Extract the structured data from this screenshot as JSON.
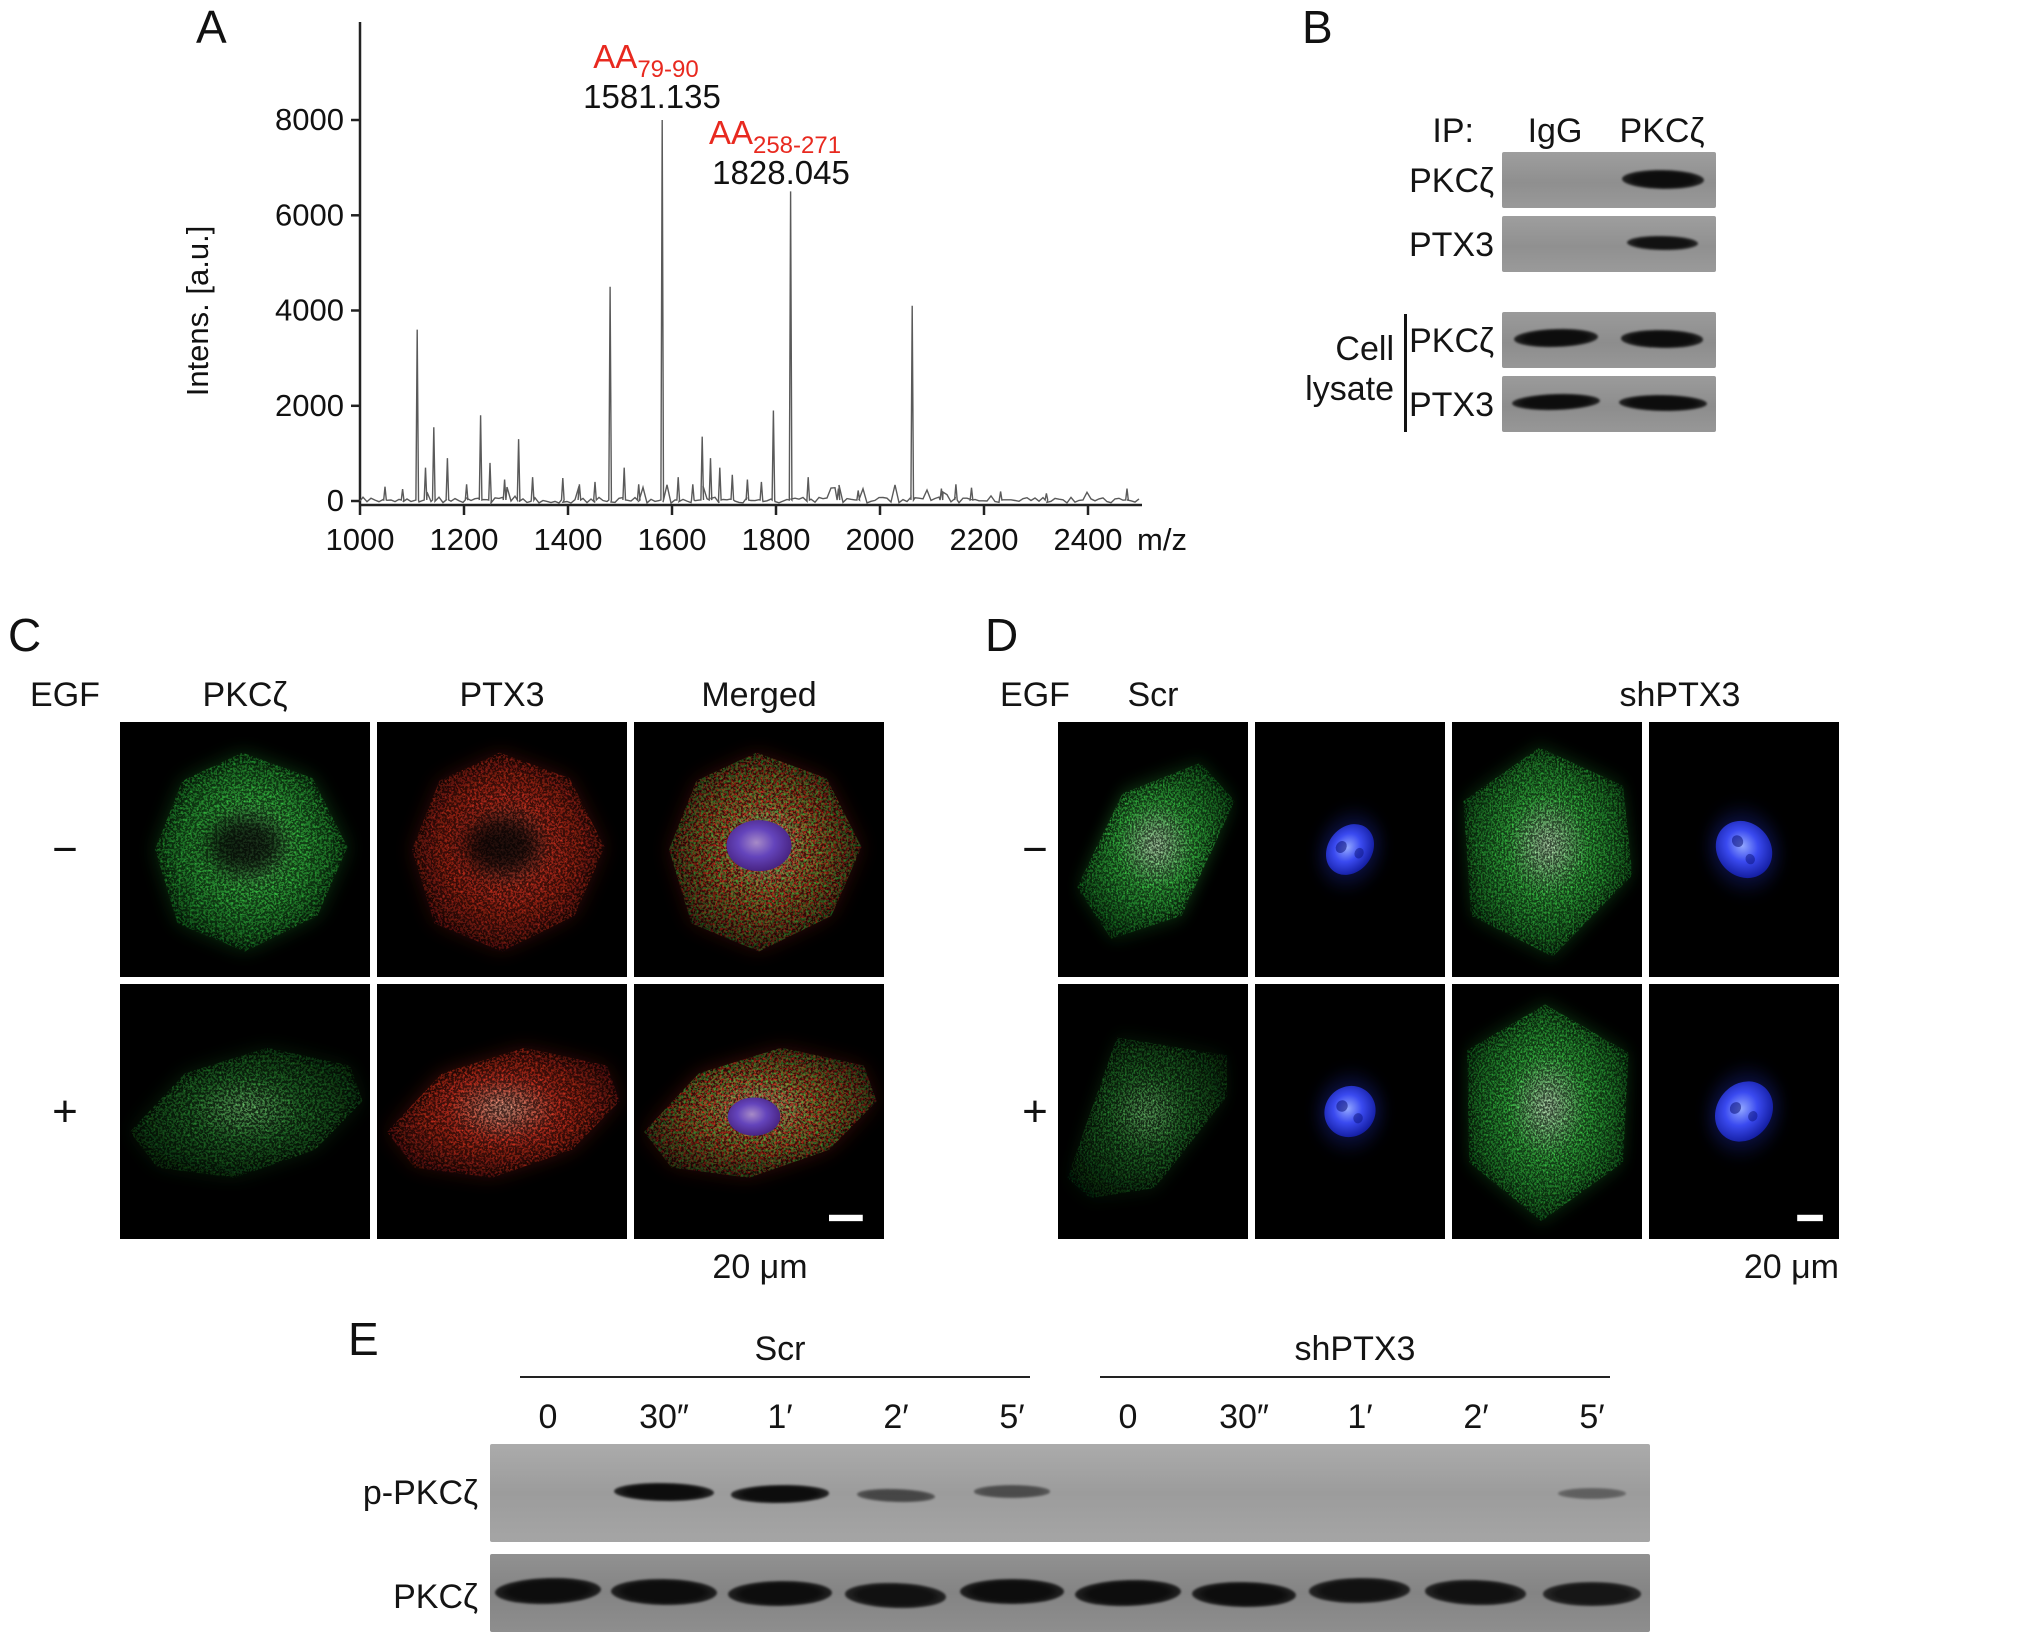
{
  "panelA": {
    "label": "A",
    "ylabel": "Intens. [a.u.]",
    "xlabel": "m/z",
    "annotation_color": "#e8291f",
    "annotations": [
      {
        "prefix": "AA",
        "sub": "79-90",
        "mass": "1581.135"
      },
      {
        "prefix": "AA",
        "sub": "258-271",
        "mass": "1828.045"
      }
    ]
  },
  "chart_data": {
    "type": "line",
    "title": "",
    "xlabel": "m/z",
    "ylabel": "Intens. [a.u.]",
    "xlim": [
      1000,
      2500
    ],
    "ylim": [
      0,
      8600
    ],
    "x_ticks": [
      1000,
      1200,
      1400,
      1600,
      1800,
      2000,
      2200,
      2400
    ],
    "y_ticks": [
      0,
      2000,
      4000,
      6000,
      8000
    ],
    "peaks": [
      [
        1048,
        300
      ],
      [
        1082,
        250
      ],
      [
        1110,
        3600
      ],
      [
        1126,
        700
      ],
      [
        1142,
        1550
      ],
      [
        1168,
        900
      ],
      [
        1205,
        350
      ],
      [
        1232,
        1800
      ],
      [
        1250,
        800
      ],
      [
        1278,
        450
      ],
      [
        1305,
        1300
      ],
      [
        1332,
        500
      ],
      [
        1390,
        480
      ],
      [
        1422,
        350
      ],
      [
        1452,
        400
      ],
      [
        1481,
        4500
      ],
      [
        1508,
        700
      ],
      [
        1536,
        350
      ],
      [
        1581.135,
        8000
      ],
      [
        1612,
        500
      ],
      [
        1640,
        350
      ],
      [
        1658,
        1350
      ],
      [
        1674,
        900
      ],
      [
        1692,
        700
      ],
      [
        1716,
        550
      ],
      [
        1745,
        450
      ],
      [
        1772,
        400
      ],
      [
        1795,
        1900
      ],
      [
        1828.045,
        6500
      ],
      [
        1862,
        500
      ],
      [
        1920,
        260
      ],
      [
        1958,
        220
      ],
      [
        2062,
        4100
      ],
      [
        2118,
        260
      ],
      [
        2146,
        350
      ],
      [
        2176,
        280
      ],
      [
        2232,
        200
      ],
      [
        2320,
        160
      ],
      [
        2475,
        260
      ]
    ],
    "labeled_peaks": [
      {
        "mz": 1581.135,
        "intensity": 8000,
        "label": "AA 79-90"
      },
      {
        "mz": 1828.045,
        "intensity": 6500,
        "label": "AA 258-271"
      }
    ]
  },
  "panelB": {
    "label": "B",
    "ip_label": "IP:",
    "lane_headers": [
      "IgG",
      "PKCζ"
    ],
    "ip_rows": [
      {
        "target": "PKCζ",
        "bands": [
          0,
          1
        ]
      },
      {
        "target": "PTX3",
        "bands": [
          0,
          0.9
        ]
      }
    ],
    "lysate_label_line1": "Cell",
    "lysate_label_line2": "lysate",
    "lysate_rows": [
      {
        "target": "PKCζ",
        "bands": [
          1,
          0.95
        ]
      },
      {
        "target": "PTX3",
        "bands": [
          1,
          1
        ]
      }
    ]
  },
  "panelC": {
    "label": "C",
    "egf_header": "EGF",
    "col_headers": [
      "PKCζ",
      "PTX3",
      "Merged"
    ],
    "rows": [
      {
        "egf": "−",
        "images": [
          {
            "type": "green",
            "desc": "PKCζ immunofluorescence"
          },
          {
            "type": "red",
            "desc": "PTX3 immunofluorescence"
          },
          {
            "type": "merged",
            "desc": "merged with nucleus"
          }
        ]
      },
      {
        "egf": "+",
        "images": [
          {
            "type": "green",
            "desc": "PKCζ immunofluorescence"
          },
          {
            "type": "red",
            "desc": "PTX3 immunofluorescence"
          },
          {
            "type": "merged",
            "desc": "merged with nucleus"
          }
        ]
      }
    ],
    "scale_label": "20 μm"
  },
  "panelD": {
    "label": "D",
    "egf_header": "EGF",
    "group_headers": [
      "Scr",
      "shPTX3"
    ],
    "rows": [
      {
        "egf": "−",
        "images": [
          {
            "type": "green"
          },
          {
            "type": "nucleus"
          },
          {
            "type": "green-bright"
          },
          {
            "type": "nucleus"
          }
        ]
      },
      {
        "egf": "+",
        "images": [
          {
            "type": "green"
          },
          {
            "type": "nucleus"
          },
          {
            "type": "green-bright"
          },
          {
            "type": "nucleus"
          }
        ]
      }
    ],
    "scale_label": "20 μm"
  },
  "panelE": {
    "label": "E",
    "groups": [
      {
        "name": "Scr",
        "timepoints": [
          "0",
          "30″",
          "1′",
          "2′",
          "5′"
        ]
      },
      {
        "name": "shPTX3",
        "timepoints": [
          "0",
          "30″",
          "1′",
          "2′",
          "5′"
        ]
      }
    ],
    "rows": [
      {
        "target": "p-PKCζ",
        "bands": [
          0,
          1,
          0.95,
          0.5,
          0.45,
          0,
          0,
          0,
          0,
          0.3
        ]
      },
      {
        "target": "PKCζ",
        "bands": [
          1,
          1,
          0.95,
          0.9,
          0.95,
          1,
          0.95,
          0.9,
          0.9,
          0.85
        ]
      }
    ]
  },
  "colors": {
    "annotation_red": "#e8291f",
    "spectrum_line": "#5a5a5a",
    "blot_bg": "#949494",
    "band_dark": "#161616",
    "fluor_green": "#2ecc40",
    "fluor_red": "#e03020",
    "nucleus_blue": "#2b3bd8"
  }
}
